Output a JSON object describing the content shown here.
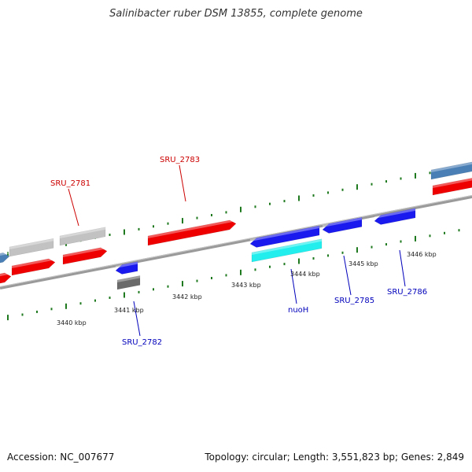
{
  "title": "Salinibacter ruber DSM 13855, complete genome",
  "footer": {
    "accession": "Accession: NC_007677",
    "stats": "Topology: circular; Length: 3,551,823 bp; Genes: 2,849"
  },
  "colors": {
    "backbone": "#8a8a8a",
    "tick": "#1f7a1f",
    "forward_label": "#cc0000",
    "reverse_label": "#0000bb",
    "gene_red": "#ee0000",
    "gene_blue": "#1a1aee",
    "gene_grey": "#c2c2c2",
    "gene_darkgrey": "#6a6a6a",
    "gene_cyan": "#22eeee",
    "gene_steelblue": "#4a7fb5"
  },
  "scale_labels": [
    "3440 kbp",
    "3441 kbp",
    "3442 kbp",
    "3443 kbp",
    "3444 kbp",
    "3445 kbp",
    "3446 kbp"
  ],
  "gene_labels": [
    {
      "text": "SRU_2781",
      "strand": "forward"
    },
    {
      "text": "SRU_2783",
      "strand": "forward"
    },
    {
      "text": "SRU_2782",
      "strand": "reverse"
    },
    {
      "text": "nuoH",
      "strand": "reverse"
    },
    {
      "text": "SRU_2785",
      "strand": "reverse"
    },
    {
      "text": "SRU_2786",
      "strand": "reverse"
    }
  ]
}
